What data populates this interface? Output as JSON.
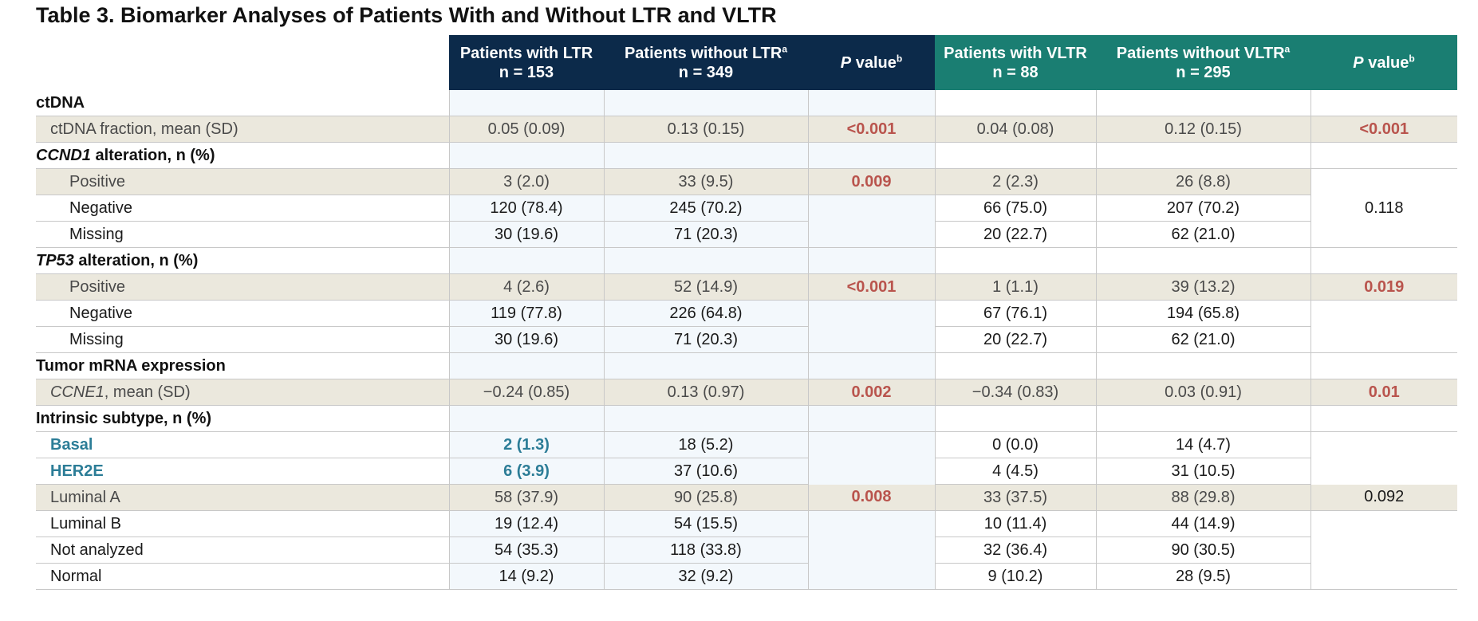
{
  "title": "Table 3. Biomarker Analyses of Patients With and Without LTR and VLTR",
  "columns": {
    "ltr_with": {
      "line1": "Patients with LTR",
      "line2": "n = 153"
    },
    "ltr_without": {
      "line1": "Patients without LTR",
      "sup": "a",
      "line2": "n = 349"
    },
    "ltr_p": {
      "italic": "P",
      "text": " value",
      "sup": "b"
    },
    "vltr_with": {
      "line1": "Patients with VLTR",
      "line2": "n = 88"
    },
    "vltr_without": {
      "line1": "Patients without VLTR",
      "sup": "a",
      "line2": "n = 295"
    },
    "vltr_p": {
      "italic": "P",
      "text": " value",
      "sup": "b"
    }
  },
  "colors": {
    "ltr_header": "#0c2a4a",
    "vltr_header": "#1a7e72",
    "significant": "#b9544d",
    "highlight": "#2c7d97",
    "shade": "#ebe8dd"
  },
  "rows": {
    "ctdna_section": {
      "label": "ctDNA"
    },
    "ctdna_fraction": {
      "label": "ctDNA fraction, mean (SD)",
      "v1": "0.05 (0.09)",
      "v2": "0.13 (0.15)",
      "p1": "<0.001",
      "v3": "0.04 (0.08)",
      "v4": "0.12 (0.15)",
      "p2": "<0.001"
    },
    "ccnd1_section": {
      "label_italic": "CCND1",
      "label": " alteration, n (%)"
    },
    "ccnd1_pos": {
      "label": "Positive",
      "v1": "3 (2.0)",
      "v2": "33 (9.5)",
      "p1": "0.009",
      "v3": "2 (2.3)",
      "v4": "26 (8.8)"
    },
    "ccnd1_neg": {
      "label": "Negative",
      "v1": "120 (78.4)",
      "v2": "245 (70.2)",
      "v3": "66 (75.0)",
      "v4": "207 (70.2)",
      "p2": "0.118"
    },
    "ccnd1_miss": {
      "label": "Missing",
      "v1": "30 (19.6)",
      "v2": "71 (20.3)",
      "v3": "20 (22.7)",
      "v4": "62 (21.0)"
    },
    "tp53_section": {
      "label_italic": "TP53",
      "label": " alteration, n (%)"
    },
    "tp53_pos": {
      "label": "Positive",
      "v1": "4 (2.6)",
      "v2": "52 (14.9)",
      "p1": "<0.001",
      "v3": "1 (1.1)",
      "v4": "39 (13.2)",
      "p2": "0.019"
    },
    "tp53_neg": {
      "label": "Negative",
      "v1": "119 (77.8)",
      "v2": "226 (64.8)",
      "v3": "67 (76.1)",
      "v4": "194 (65.8)"
    },
    "tp53_miss": {
      "label": "Missing",
      "v1": "30 (19.6)",
      "v2": "71 (20.3)",
      "v3": "20 (22.7)",
      "v4": "62 (21.0)"
    },
    "mrna_section": {
      "label": "Tumor mRNA expression"
    },
    "ccne1": {
      "label_italic": "CCNE1",
      "label": ", mean (SD)",
      "v1": "−0.24 (0.85)",
      "v2": "0.13 (0.97)",
      "p1": "0.002",
      "v3": "−0.34 (0.83)",
      "v4": "0.03 (0.91)",
      "p2": "0.01"
    },
    "subtype_section": {
      "label": "Intrinsic subtype, n (%)"
    },
    "basal": {
      "label": "Basal",
      "v1": "2 (1.3)",
      "v2": "18 (5.2)",
      "v3": "0 (0.0)",
      "v4": "14 (4.7)"
    },
    "her2e": {
      "label": "HER2E",
      "v1": "6 (3.9)",
      "v2": "37 (10.6)",
      "v3": "4 (4.5)",
      "v4": "31 (10.5)"
    },
    "luma": {
      "label": "Luminal A",
      "v1": "58 (37.9)",
      "v2": "90 (25.8)",
      "p1": "0.008",
      "v3": "33 (37.5)",
      "v4": "88 (29.8)",
      "p2": "0.092"
    },
    "lumb": {
      "label": "Luminal B",
      "v1": "19 (12.4)",
      "v2": "54 (15.5)",
      "v3": "10 (11.4)",
      "v4": "44 (14.9)"
    },
    "notan": {
      "label": "Not analyzed",
      "v1": "54 (35.3)",
      "v2": "118 (33.8)",
      "v3": "32 (36.4)",
      "v4": "90 (30.5)"
    },
    "normal": {
      "label": "Normal",
      "v1": "14 (9.2)",
      "v2": "32 (9.2)",
      "v3": "9 (10.2)",
      "v4": "28 (9.5)"
    }
  }
}
